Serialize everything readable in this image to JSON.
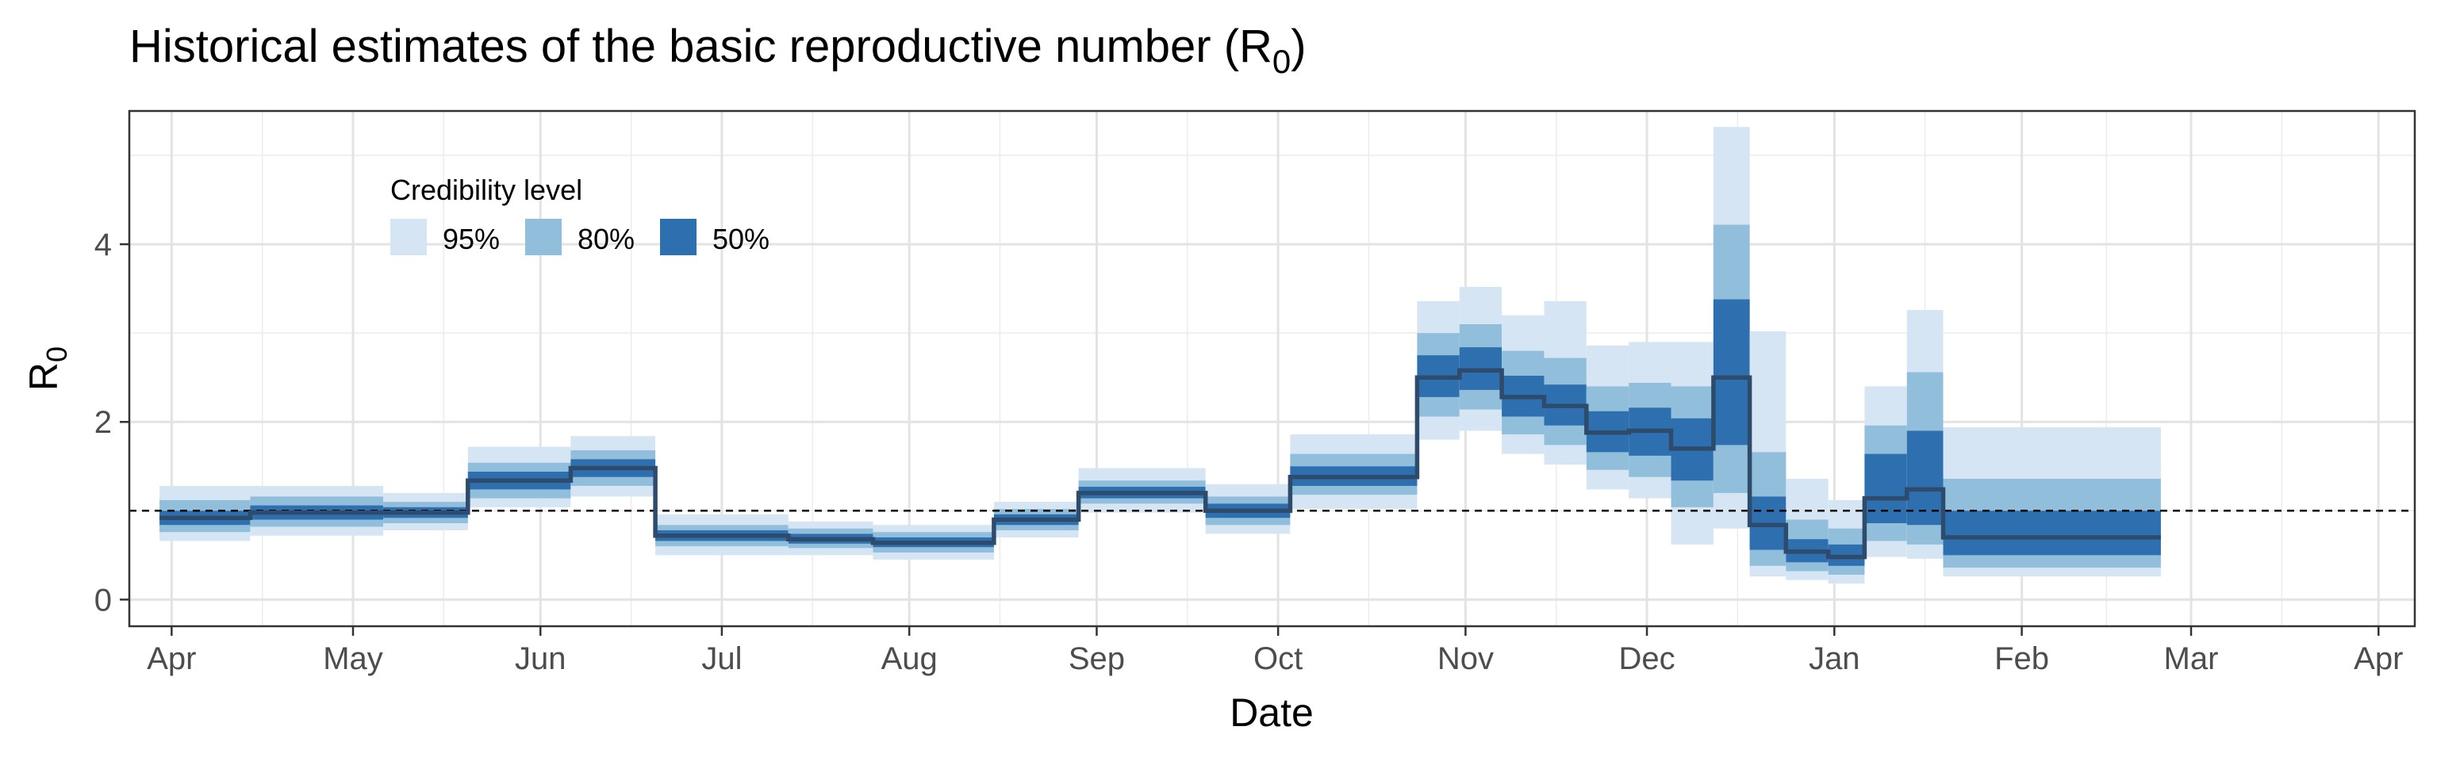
{
  "chart_data": {
    "type": "area",
    "title": "Historical estimates of the basic reproductive number (R",
    "title_subscript": "0",
    "title_suffix": ")",
    "xlabel": "Date",
    "ylabel": "R",
    "ylabel_subscript": "0",
    "xlim": [
      "2020-03-25",
      "2021-04-07"
    ],
    "ylim": [
      -0.3,
      5.5
    ],
    "y_ticks": [
      0,
      2,
      4
    ],
    "x_ticks": [
      {
        "date": "2020-04-01",
        "label": "Apr"
      },
      {
        "date": "2020-05-01",
        "label": "May"
      },
      {
        "date": "2020-06-01",
        "label": "Jun"
      },
      {
        "date": "2020-07-01",
        "label": "Jul"
      },
      {
        "date": "2020-08-01",
        "label": "Aug"
      },
      {
        "date": "2020-09-01",
        "label": "Sep"
      },
      {
        "date": "2020-10-01",
        "label": "Oct"
      },
      {
        "date": "2020-11-01",
        "label": "Nov"
      },
      {
        "date": "2020-12-01",
        "label": "Dec"
      },
      {
        "date": "2021-01-01",
        "label": "Jan"
      },
      {
        "date": "2021-02-01",
        "label": "Feb"
      },
      {
        "date": "2021-03-01",
        "label": "Mar"
      },
      {
        "date": "2021-04-01",
        "label": "Apr"
      }
    ],
    "reference_line": {
      "y": 1,
      "style": "dashed"
    },
    "grid": true,
    "legend": {
      "title": "Credibility level",
      "placement": "top-left",
      "entries": [
        {
          "label": "95%",
          "color": "#d6e5f4"
        },
        {
          "label": "80%",
          "color": "#91bfdb"
        },
        {
          "label": "50%",
          "color": "#2e6fb0"
        }
      ]
    },
    "median_color": "#2f4b6b",
    "segments": [
      {
        "start": "2020-03-30",
        "end": "2020-04-14",
        "median": 0.92,
        "lo50": 0.84,
        "hi50": 1.0,
        "lo80": 0.76,
        "hi80": 1.12,
        "lo95": 0.66,
        "hi95": 1.28
      },
      {
        "start": "2020-04-14",
        "end": "2020-05-06",
        "median": 0.98,
        "lo50": 0.9,
        "hi50": 1.06,
        "lo80": 0.82,
        "hi80": 1.16,
        "lo95": 0.72,
        "hi95": 1.28
      },
      {
        "start": "2020-05-06",
        "end": "2020-05-20",
        "median": 0.98,
        "lo50": 0.92,
        "hi50": 1.04,
        "lo80": 0.86,
        "hi80": 1.1,
        "lo95": 0.78,
        "hi95": 1.2
      },
      {
        "start": "2020-05-20",
        "end": "2020-06-06",
        "median": 1.34,
        "lo50": 1.24,
        "hi50": 1.44,
        "lo80": 1.14,
        "hi80": 1.54,
        "lo95": 1.04,
        "hi95": 1.72
      },
      {
        "start": "2020-06-06",
        "end": "2020-06-20",
        "median": 1.48,
        "lo50": 1.38,
        "hi50": 1.58,
        "lo80": 1.28,
        "hi80": 1.68,
        "lo95": 1.16,
        "hi95": 1.84
      },
      {
        "start": "2020-06-20",
        "end": "2020-07-12",
        "median": 0.72,
        "lo50": 0.66,
        "hi50": 0.78,
        "lo80": 0.6,
        "hi80": 0.84,
        "lo95": 0.5,
        "hi95": 0.96
      },
      {
        "start": "2020-07-12",
        "end": "2020-07-26",
        "median": 0.68,
        "lo50": 0.63,
        "hi50": 0.74,
        "lo80": 0.58,
        "hi80": 0.8,
        "lo95": 0.5,
        "hi95": 0.88
      },
      {
        "start": "2020-07-26",
        "end": "2020-08-15",
        "median": 0.64,
        "lo50": 0.59,
        "hi50": 0.7,
        "lo80": 0.53,
        "hi80": 0.76,
        "lo95": 0.45,
        "hi95": 0.84
      },
      {
        "start": "2020-08-15",
        "end": "2020-08-29",
        "median": 0.9,
        "lo50": 0.84,
        "hi50": 0.96,
        "lo80": 0.78,
        "hi80": 1.02,
        "lo95": 0.7,
        "hi95": 1.1
      },
      {
        "start": "2020-08-29",
        "end": "2020-09-19",
        "median": 1.2,
        "lo50": 1.14,
        "hi50": 1.27,
        "lo80": 1.08,
        "hi80": 1.34,
        "lo95": 0.98,
        "hi95": 1.48
      },
      {
        "start": "2020-09-19",
        "end": "2020-10-03",
        "median": 1.0,
        "lo50": 0.92,
        "hi50": 1.08,
        "lo80": 0.84,
        "hi80": 1.16,
        "lo95": 0.74,
        "hi95": 1.3
      },
      {
        "start": "2020-10-03",
        "end": "2020-10-24",
        "median": 1.38,
        "lo50": 1.28,
        "hi50": 1.5,
        "lo80": 1.18,
        "hi80": 1.64,
        "lo95": 1.02,
        "hi95": 1.86
      },
      {
        "start": "2020-10-24",
        "end": "2020-10-31",
        "median": 2.5,
        "lo50": 2.28,
        "hi50": 2.75,
        "lo80": 2.06,
        "hi80": 3.0,
        "lo95": 1.8,
        "hi95": 3.36
      },
      {
        "start": "2020-10-31",
        "end": "2020-11-07",
        "median": 2.58,
        "lo50": 2.36,
        "hi50": 2.84,
        "lo80": 2.14,
        "hi80": 3.1,
        "lo95": 1.9,
        "hi95": 3.52
      },
      {
        "start": "2020-11-07",
        "end": "2020-11-14",
        "median": 2.28,
        "lo50": 2.06,
        "hi50": 2.52,
        "lo80": 1.86,
        "hi80": 2.8,
        "lo95": 1.64,
        "hi95": 3.2
      },
      {
        "start": "2020-11-14",
        "end": "2020-11-21",
        "median": 2.18,
        "lo50": 1.96,
        "hi50": 2.42,
        "lo80": 1.74,
        "hi80": 2.72,
        "lo95": 1.52,
        "hi95": 3.36
      },
      {
        "start": "2020-11-21",
        "end": "2020-11-28",
        "median": 1.88,
        "lo50": 1.66,
        "hi50": 2.12,
        "lo80": 1.46,
        "hi80": 2.4,
        "lo95": 1.24,
        "hi95": 2.86
      },
      {
        "start": "2020-11-28",
        "end": "2020-12-05",
        "median": 1.9,
        "lo50": 1.62,
        "hi50": 2.16,
        "lo80": 1.38,
        "hi80": 2.44,
        "lo95": 1.14,
        "hi95": 2.9
      },
      {
        "start": "2020-12-05",
        "end": "2020-12-12",
        "median": 1.7,
        "lo50": 1.34,
        "hi50": 2.04,
        "lo80": 1.04,
        "hi80": 2.4,
        "lo95": 0.62,
        "hi95": 2.9
      },
      {
        "start": "2020-12-12",
        "end": "2020-12-18",
        "median": 2.5,
        "lo50": 1.74,
        "hi50": 3.38,
        "lo80": 1.2,
        "hi80": 4.22,
        "lo95": 0.8,
        "hi95": 5.32
      },
      {
        "start": "2020-12-18",
        "end": "2020-12-24",
        "median": 0.84,
        "lo50": 0.56,
        "hi50": 1.16,
        "lo80": 0.38,
        "hi80": 1.66,
        "lo95": 0.26,
        "hi95": 3.02
      },
      {
        "start": "2020-12-24",
        "end": "2020-12-31",
        "median": 0.54,
        "lo50": 0.42,
        "hi50": 0.68,
        "lo80": 0.32,
        "hi80": 0.9,
        "lo95": 0.22,
        "hi95": 1.36
      },
      {
        "start": "2020-12-31",
        "end": "2021-01-06",
        "median": 0.48,
        "lo50": 0.38,
        "hi50": 0.62,
        "lo80": 0.28,
        "hi80": 0.8,
        "lo95": 0.18,
        "hi95": 1.12
      },
      {
        "start": "2021-01-06",
        "end": "2021-01-13",
        "median": 1.14,
        "lo50": 0.86,
        "hi50": 1.64,
        "lo80": 0.66,
        "hi80": 1.96,
        "lo95": 0.48,
        "hi95": 2.4
      },
      {
        "start": "2021-01-13",
        "end": "2021-01-19",
        "median": 1.24,
        "lo50": 0.84,
        "hi50": 1.9,
        "lo80": 0.62,
        "hi80": 2.56,
        "lo95": 0.46,
        "hi95": 3.26
      },
      {
        "start": "2021-01-19",
        "end": "2021-02-24",
        "median": 0.7,
        "lo50": 0.5,
        "hi50": 1.0,
        "lo80": 0.36,
        "hi80": 1.36,
        "lo95": 0.26,
        "hi95": 1.94
      }
    ]
  }
}
